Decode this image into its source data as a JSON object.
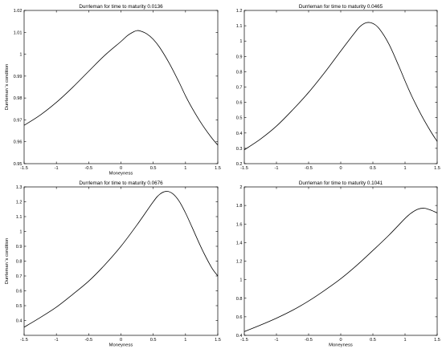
{
  "chart_data": [
    {
      "type": "line",
      "title": "Durrleman for time to maturity 0.0136",
      "xlabel": "Moneyness",
      "ylabel": "Durrleman 's condition",
      "xlim": [
        -1.5,
        1.5
      ],
      "ylim": [
        0.95,
        1.02
      ],
      "xticks": [
        "-1.5",
        "-1",
        "-0.5",
        "0",
        "0.5",
        "1",
        "1.5"
      ],
      "yticks": [
        "0.95",
        "0.96",
        "0.97",
        "0.98",
        "0.99",
        "1",
        "1.01",
        "1.02"
      ],
      "x": [
        -1.5,
        -1.25,
        -1.0,
        -0.75,
        -0.5,
        -0.25,
        0.0,
        0.1,
        0.2,
        0.25,
        0.3,
        0.4,
        0.5,
        0.6,
        0.75,
        0.9,
        1.0,
        1.1,
        1.25,
        1.4,
        1.5
      ],
      "y": [
        0.9675,
        0.9722,
        0.978,
        0.9848,
        0.9922,
        0.9995,
        1.0058,
        1.0085,
        1.0103,
        1.0108,
        1.0106,
        1.0093,
        1.0068,
        1.0031,
        0.9958,
        0.9872,
        0.981,
        0.9755,
        0.9682,
        0.962,
        0.9585
      ],
      "grid": false,
      "legend": "none"
    },
    {
      "type": "line",
      "title": "Durrleman for time to maturity 0.0465",
      "xlabel": "",
      "ylabel": "",
      "xlim": [
        -1.5,
        1.5
      ],
      "ylim": [
        0.2,
        1.2
      ],
      "xticks": [
        "-1.5",
        "-1",
        "-0.5",
        "0",
        "0.5",
        "1",
        "1.5"
      ],
      "yticks": [
        "0.2",
        "0.3",
        "0.4",
        "0.5",
        "0.6",
        "0.7",
        "0.8",
        "0.9",
        "1",
        "1.1",
        "1.2"
      ],
      "x": [
        -1.5,
        -1.25,
        -1.0,
        -0.75,
        -0.5,
        -0.25,
        0.0,
        0.2,
        0.3,
        0.4,
        0.5,
        0.6,
        0.75,
        0.9,
        1.0,
        1.1,
        1.25,
        1.4,
        1.5
      ],
      "y": [
        0.29,
        0.36,
        0.445,
        0.55,
        0.665,
        0.795,
        0.935,
        1.045,
        1.095,
        1.12,
        1.115,
        1.08,
        0.98,
        0.84,
        0.74,
        0.645,
        0.52,
        0.41,
        0.345
      ],
      "grid": false,
      "legend": "none"
    },
    {
      "type": "line",
      "title": "Durrleman for time to maturity 0.0676",
      "xlabel": "Moneyness",
      "ylabel": "Durrleman 's condition",
      "xlim": [
        -1.5,
        1.5
      ],
      "ylim": [
        0.3,
        1.3
      ],
      "xticks": [
        "-1.5",
        "-1",
        "-0.5",
        "0",
        "0.5",
        "1",
        "1.5"
      ],
      "yticks": [
        "0.4",
        "0.5",
        "0.6",
        "0.7",
        "0.8",
        "0.9",
        "1",
        "1.1",
        "1.2",
        "1.3"
      ],
      "x": [
        -1.5,
        -1.25,
        -1.0,
        -0.75,
        -0.5,
        -0.25,
        0.0,
        0.25,
        0.5,
        0.6,
        0.7,
        0.8,
        0.9,
        1.0,
        1.1,
        1.25,
        1.4,
        1.5
      ],
      "y": [
        0.355,
        0.42,
        0.49,
        0.575,
        0.665,
        0.775,
        0.9,
        1.045,
        1.2,
        1.25,
        1.27,
        1.255,
        1.205,
        1.125,
        1.03,
        0.885,
        0.76,
        0.7
      ],
      "grid": false,
      "legend": "none"
    },
    {
      "type": "line",
      "title": "Durrleman for time to maturity 0.1041",
      "xlabel": "Moneyness",
      "ylabel": "",
      "xlim": [
        -1.5,
        1.5
      ],
      "ylim": [
        0.4,
        2.0
      ],
      "xticks": [
        "-1.5",
        "-1",
        "-0.5",
        "0",
        "0.5",
        "1",
        "1.5"
      ],
      "yticks": [
        "0.4",
        "0.6",
        "0.8",
        "1",
        "1.2",
        "1.4",
        "1.6",
        "1.8",
        "2"
      ],
      "x": [
        -1.5,
        -1.25,
        -1.0,
        -0.75,
        -0.5,
        -0.25,
        0.0,
        0.25,
        0.5,
        0.75,
        1.0,
        1.1,
        1.2,
        1.3,
        1.4,
        1.5
      ],
      "y": [
        0.44,
        0.51,
        0.585,
        0.67,
        0.77,
        0.885,
        1.01,
        1.155,
        1.315,
        1.48,
        1.66,
        1.72,
        1.76,
        1.77,
        1.75,
        1.72
      ],
      "grid": false,
      "legend": "none"
    }
  ]
}
